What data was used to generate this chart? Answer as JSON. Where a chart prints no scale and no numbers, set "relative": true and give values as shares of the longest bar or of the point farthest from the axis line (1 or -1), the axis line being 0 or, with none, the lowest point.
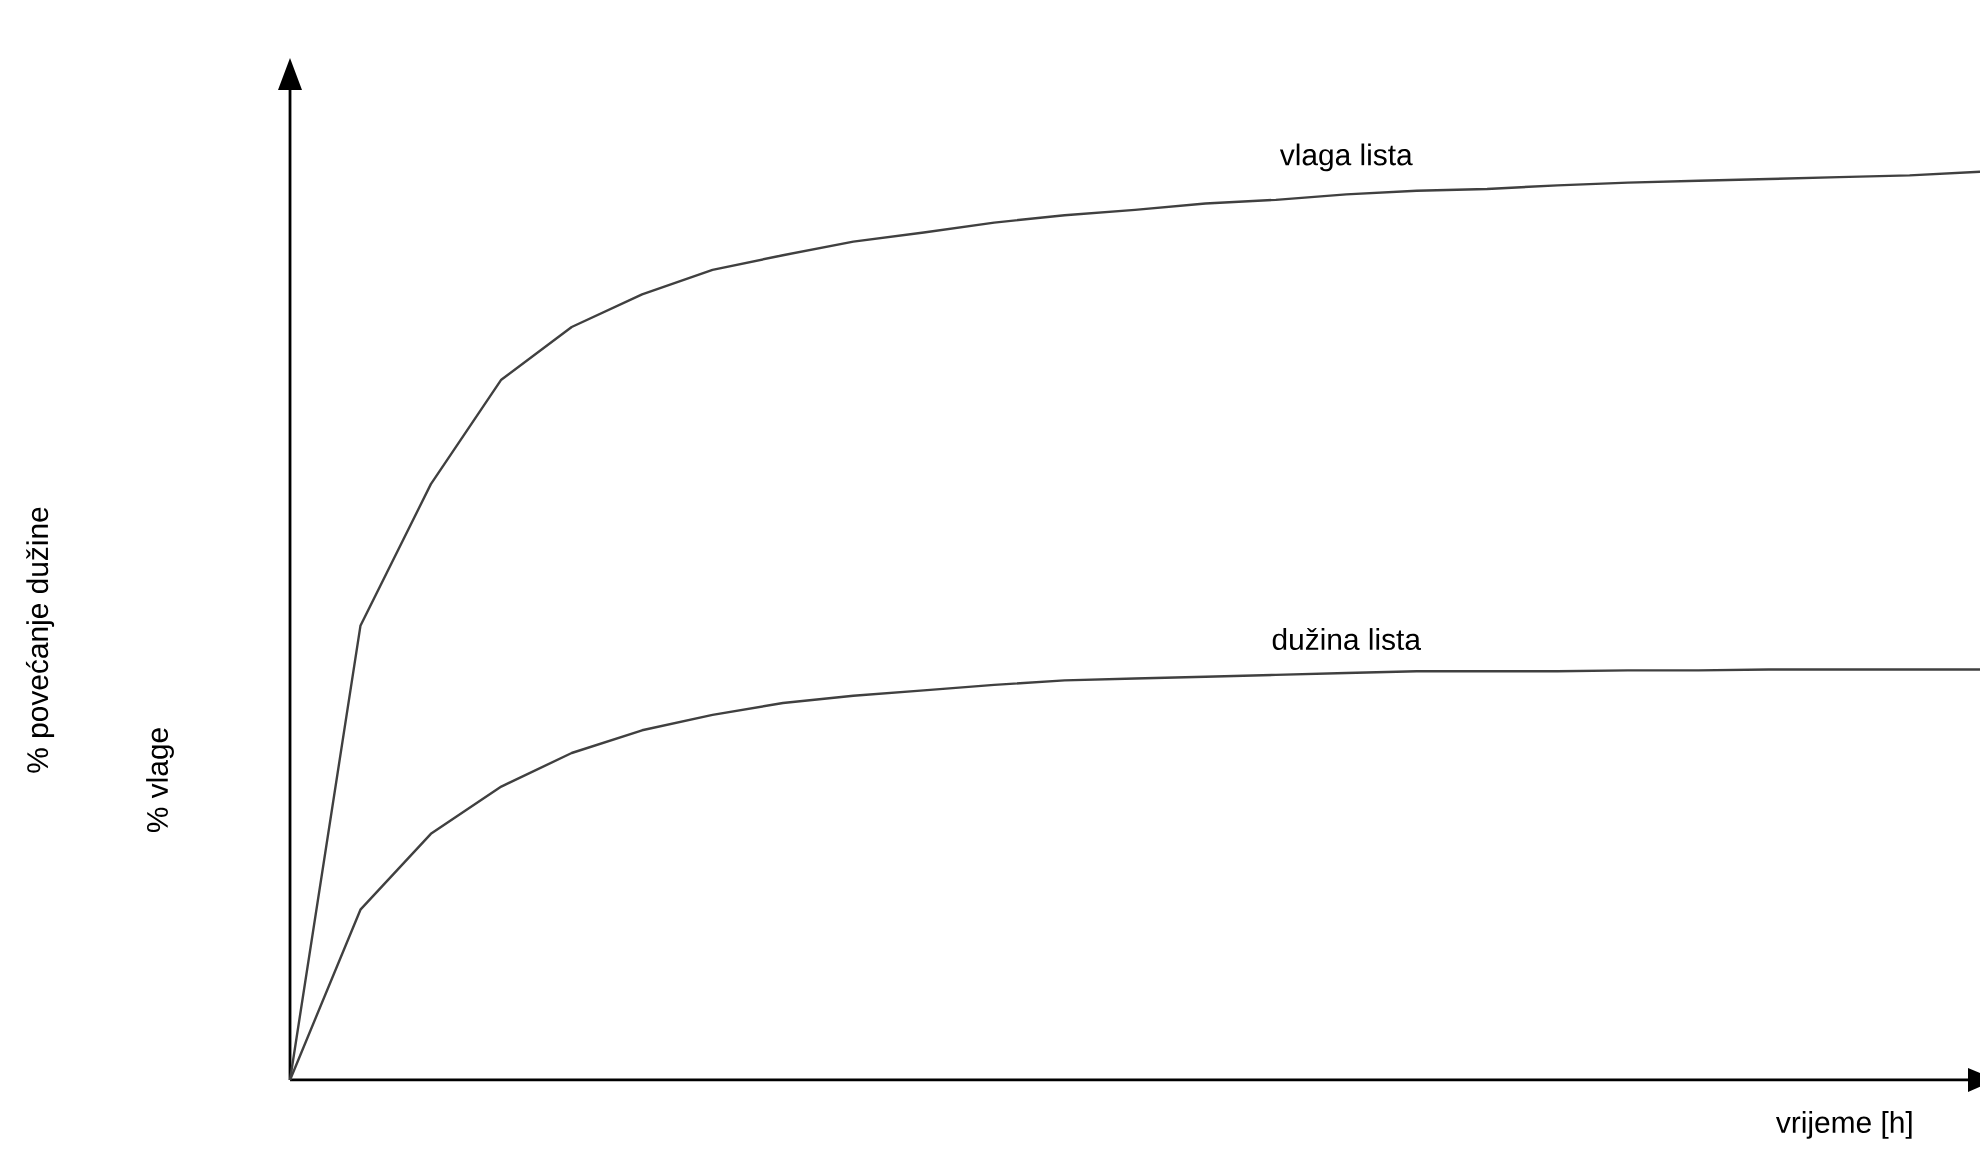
{
  "chart_data": {
    "type": "line",
    "relative": true,
    "xlabel": "vrijeme [h]",
    "annotations": [
      "% povećanje dužine",
      "% vlage"
    ],
    "marker": "none",
    "line_style": "solid",
    "categories": [
      null,
      null,
      null,
      null,
      null,
      null,
      null,
      null,
      null,
      null,
      null,
      null,
      null,
      null,
      null,
      null,
      null,
      null,
      null,
      null,
      null,
      null,
      null,
      null,
      null
    ],
    "series": [
      {
        "name": "vlaga lista",
        "color": "#404040",
        "values": [
          0,
          0.5,
          0.656,
          0.771,
          0.829,
          0.865,
          0.892,
          0.908,
          0.923,
          0.933,
          0.944,
          0.952,
          0.958,
          0.965,
          0.969,
          0.975,
          0.979,
          0.981,
          0.985,
          0.988,
          0.99,
          0.992,
          0.994,
          0.996,
          1
        ]
      },
      {
        "name": "dužina lista",
        "color": "#404040",
        "values": [
          0,
          0.1875,
          0.271,
          0.323,
          0.36,
          0.385,
          0.402,
          0.415,
          0.423,
          0.429,
          0.435,
          0.44,
          0.442,
          0.444,
          0.446,
          0.448,
          0.45,
          0.45,
          0.45,
          0.451,
          0.451,
          0.452,
          0.452,
          0.452,
          0.452
        ]
      }
    ]
  }
}
